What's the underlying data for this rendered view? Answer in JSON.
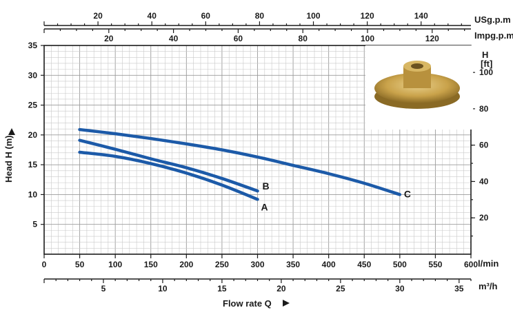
{
  "chart_data": {
    "type": "line",
    "title": "",
    "xlabel": "Flow rate Q",
    "ylabel": "Head H (m)",
    "xlim": [
      0,
      600
    ],
    "ylim": [
      0,
      35
    ],
    "x_ticks": [
      0,
      50,
      100,
      150,
      200,
      250,
      300,
      350,
      400,
      450,
      500,
      550,
      600
    ],
    "x_unit": "l/min",
    "y_ticks": [
      5,
      10,
      15,
      20,
      25,
      30,
      35
    ],
    "secondary_x_m3h": {
      "unit": "m³/h",
      "ticks": [
        5,
        10,
        15,
        20,
        25,
        30,
        35
      ]
    },
    "secondary_x_usgpm": {
      "unit": "USg.p.m",
      "ticks": [
        20,
        40,
        60,
        80,
        100,
        120,
        140
      ]
    },
    "secondary_x_impgpm": {
      "unit": "Impg.p.m",
      "ticks": [
        20,
        40,
        60,
        80,
        100,
        120
      ]
    },
    "secondary_y_ft": {
      "unit": "H\n[ft]",
      "ticks": [
        20,
        40,
        60,
        80,
        100
      ]
    },
    "grid": true,
    "series": [
      {
        "name": "A",
        "x": [
          50,
          100,
          150,
          200,
          250,
          300
        ],
        "y": [
          17.1,
          16.4,
          15.2,
          13.6,
          11.6,
          9.2
        ]
      },
      {
        "name": "B",
        "x": [
          50,
          100,
          150,
          200,
          250,
          300
        ],
        "y": [
          19.1,
          17.6,
          16.0,
          14.5,
          12.7,
          10.6
        ]
      },
      {
        "name": "C",
        "x": [
          50,
          100,
          150,
          200,
          250,
          300,
          350,
          400,
          450,
          500
        ],
        "y": [
          20.9,
          20.2,
          19.4,
          18.5,
          17.5,
          16.3,
          14.9,
          13.5,
          11.9,
          10.0
        ]
      }
    ]
  },
  "labels": {
    "head_axis": "Head H (m)",
    "flow_axis": "Flow rate Q",
    "lmin": "l/min",
    "m3h": "m³/h",
    "usgpm": "USg.p.m",
    "impgpm": "Impg.p.m",
    "ft_h": "H",
    "ft_unit": "[ft]"
  },
  "colors": {
    "curve": "#1c5aa8",
    "impeller": "#c9a24a"
  },
  "icons": {
    "up_arrow": "arrow-up-icon",
    "right_arrow": "arrow-right-icon"
  }
}
